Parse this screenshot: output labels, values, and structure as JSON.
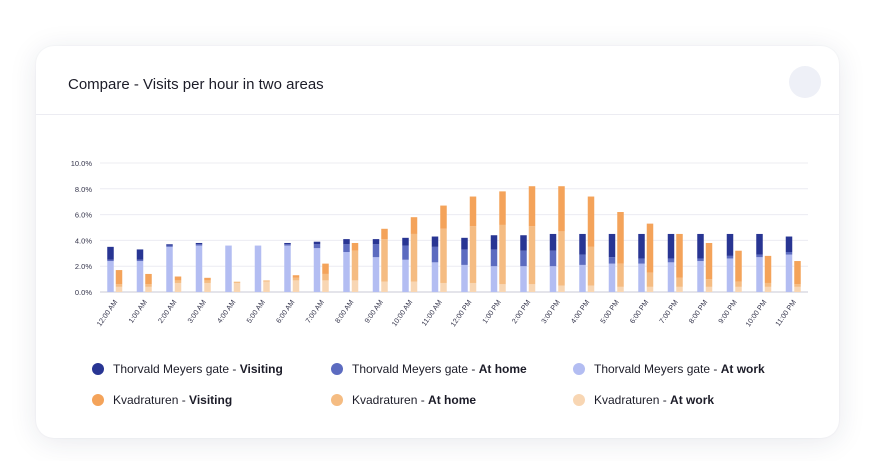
{
  "card": {
    "title": "Compare - Visits per hour in two areas"
  },
  "colors": {
    "tm_visiting": "#283593",
    "tm_home": "#5c6bc0",
    "tm_work": "#b3bdf2",
    "kv_visiting": "#f4a35a",
    "kv_home": "#f5bc82",
    "kv_work": "#f8d6b3"
  },
  "legend": [
    {
      "area": "Thorvald Meyers gate",
      "sep": " - ",
      "kind": "Visiting",
      "color_key": "tm_visiting"
    },
    {
      "area": "Thorvald Meyers gate",
      "sep": " - ",
      "kind": "At home",
      "color_key": "tm_home"
    },
    {
      "area": "Thorvald Meyers gate",
      "sep": " - ",
      "kind": "At work",
      "color_key": "tm_work"
    },
    {
      "area": "Kvadraturen",
      "sep": " - ",
      "kind": "Visiting",
      "color_key": "kv_visiting"
    },
    {
      "area": "Kvadraturen",
      "sep": " - ",
      "kind": "At home",
      "color_key": "kv_home"
    },
    {
      "area": "Kvadraturen",
      "sep": " - ",
      "kind": "At work",
      "color_key": "kv_work"
    }
  ],
  "chart_data": {
    "type": "bar",
    "stacked": true,
    "grouped": true,
    "title": "",
    "ylim": [
      0,
      10
    ],
    "y_ticks": [
      "0.0%",
      "2.0%",
      "4.0%",
      "6.0%",
      "8.0%",
      "10.0%"
    ],
    "grid": true,
    "categories": [
      "12:00 AM",
      "1:00 AM",
      "2:00 AM",
      "3:00 AM",
      "4:00 AM",
      "5:00 AM",
      "6:00 AM",
      "7:00 AM",
      "8:00 AM",
      "9:00 AM",
      "10:00 AM",
      "11:00 AM",
      "12:00 PM",
      "1:00 PM",
      "2:00 PM",
      "3:00 PM",
      "4:00 PM",
      "5:00 PM",
      "6:00 PM",
      "7:00 PM",
      "8:00 PM",
      "9:00 PM",
      "10:00 PM",
      "11:00 PM"
    ],
    "groups": [
      {
        "name": "Thorvald Meyers gate",
        "series": [
          {
            "name": "Thorvald Meyers gate - At work",
            "color_key": "tm_work",
            "values": [
              2.4,
              2.4,
              3.5,
              3.6,
              3.6,
              3.6,
              3.6,
              3.4,
              3.1,
              2.7,
              2.5,
              2.3,
              2.1,
              2.0,
              2.0,
              2.0,
              2.1,
              2.2,
              2.2,
              2.3,
              2.4,
              2.6,
              2.7,
              2.9
            ]
          },
          {
            "name": "Thorvald Meyers gate - At home",
            "color_key": "tm_home",
            "values": [
              0.1,
              0.1,
              0.1,
              0.1,
              0,
              0,
              0.1,
              0.3,
              0.6,
              1.0,
              1.1,
              1.2,
              1.2,
              1.3,
              1.2,
              1.2,
              0.8,
              0.5,
              0.4,
              0.3,
              0.2,
              0.2,
              0.2,
              0.2
            ]
          },
          {
            "name": "Thorvald Meyers gate - Visiting",
            "color_key": "tm_visiting",
            "values": [
              1.0,
              0.8,
              0.1,
              0.1,
              0,
              0,
              0.1,
              0.2,
              0.4,
              0.4,
              0.6,
              0.8,
              0.9,
              1.1,
              1.2,
              1.3,
              1.6,
              1.8,
              1.9,
              1.9,
              1.9,
              1.7,
              1.6,
              1.2
            ]
          }
        ]
      },
      {
        "name": "Kvadraturen",
        "series": [
          {
            "name": "Kvadraturen - At work",
            "color_key": "kv_work",
            "values": [
              0.4,
              0.4,
              0.7,
              0.7,
              0.7,
              0.8,
              0.9,
              0.9,
              0.9,
              0.8,
              0.8,
              0.7,
              0.7,
              0.6,
              0.6,
              0.5,
              0.5,
              0.4,
              0.4,
              0.4,
              0.4,
              0.4,
              0.4,
              0.4
            ]
          },
          {
            "name": "Kvadraturen - At home",
            "color_key": "kv_home",
            "values": [
              0.2,
              0.2,
              0.2,
              0.2,
              0.1,
              0.1,
              0.2,
              0.5,
              2.3,
              3.3,
              3.7,
              4.2,
              4.4,
              4.6,
              4.5,
              4.2,
              3.0,
              1.8,
              1.1,
              0.7,
              0.6,
              0.4,
              0.3,
              0.2
            ]
          },
          {
            "name": "Kvadraturen - Visiting",
            "color_key": "kv_visiting",
            "values": [
              1.1,
              0.8,
              0.3,
              0.2,
              0,
              0,
              0.2,
              0.8,
              0.6,
              0.8,
              1.3,
              1.8,
              2.3,
              2.6,
              3.1,
              3.5,
              3.9,
              4.0,
              3.8,
              3.4,
              2.8,
              2.4,
              2.1,
              1.8
            ]
          }
        ]
      }
    ]
  }
}
